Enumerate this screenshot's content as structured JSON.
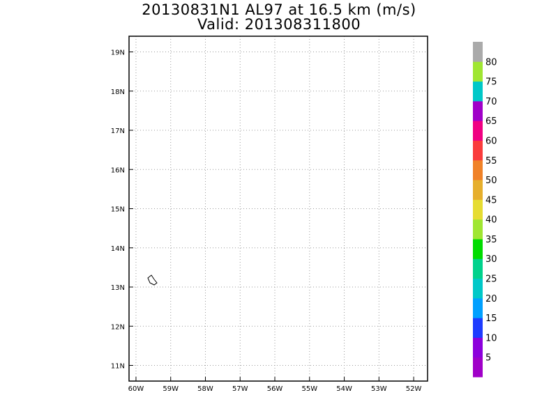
{
  "title_line1": "20130831N1 AL97 at 16.5 km (m/s)",
  "title_line2": "Valid: 201308311800",
  "map": {
    "lon_ticks": [
      "60W",
      "59W",
      "58W",
      "57W",
      "56W",
      "55W",
      "54W",
      "53W",
      "52W"
    ],
    "lat_ticks": [
      "11N",
      "12N",
      "13N",
      "14N",
      "15N",
      "16N",
      "17N",
      "18N",
      "19N"
    ],
    "lon_range": [
      -60.2,
      -51.6
    ],
    "lat_range": [
      10.6,
      19.4
    ],
    "grid": "dotted",
    "features": [
      "barbados-island-outline"
    ]
  },
  "colorbar": {
    "labels": [
      "5",
      "10",
      "15",
      "20",
      "25",
      "30",
      "35",
      "40",
      "45",
      "50",
      "55",
      "60",
      "65",
      "70",
      "75",
      "80"
    ],
    "colors": [
      "#a000c8",
      "#8c00dc",
      "#1e3cff",
      "#00a0ff",
      "#00c8c8",
      "#00d28c",
      "#00dc00",
      "#a0e632",
      "#e6dc32",
      "#e6af2d",
      "#f08228",
      "#fa3c3c",
      "#f00082",
      "#a000c8",
      "#00c8c8",
      "#a0e632",
      "#aaaaaa"
    ]
  }
}
